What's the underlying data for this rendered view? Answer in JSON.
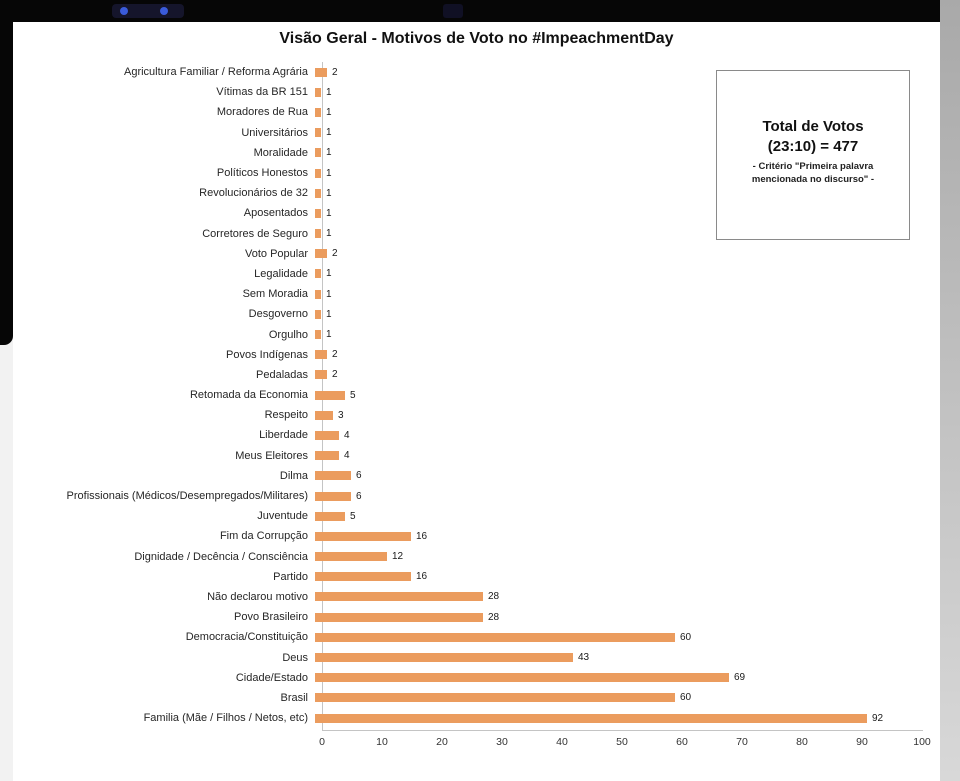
{
  "chart": {
    "title": "Visão Geral - Motivos de Voto no #ImpeachmentDay"
  },
  "annotation": {
    "line1": "Total de Votos",
    "line2": "(23:10) = 477",
    "line3": "- Critério \"Primeira palavra",
    "line4": "mencionada no discurso\" -"
  },
  "colors": {
    "bar": "#EB9C5E",
    "frame": "#060606"
  },
  "chart_data": {
    "type": "bar",
    "orientation": "horizontal",
    "title": "Visão Geral - Motivos de Voto no #ImpeachmentDay",
    "annotation": "Total de Votos (23:10) = 477 - Critério \"Primeira palavra mencionada no discurso\" -",
    "categories": [
      "Agricultura Familiar / Reforma Agrária",
      "Vítimas da BR 151",
      "Moradores de Rua",
      "Universitários",
      "Moralidade",
      "Políticos Honestos",
      "Revolucionários de 32",
      "Aposentados",
      "Corretores de Seguro",
      "Voto Popular",
      "Legalidade",
      "Sem Moradia",
      "Desgoverno",
      "Orgulho",
      "Povos Indígenas",
      "Pedaladas",
      "Retomada da Economia",
      "Respeito",
      "Liberdade",
      "Meus Eleitores",
      "Dilma",
      "Profissionais (Médicos/Desempregados/Militares)",
      "Juventude",
      "Fim da Corrupção",
      "Dignidade / Decência / Consciência",
      "Partido",
      "Não declarou motivo",
      "Povo Brasileiro",
      "Democracia/Constituição",
      "Deus",
      "Cidade/Estado",
      "Brasil",
      "Familia (Mãe / Filhos / Netos, etc)"
    ],
    "values": [
      2,
      1,
      1,
      1,
      1,
      1,
      1,
      1,
      1,
      2,
      1,
      1,
      1,
      1,
      2,
      2,
      5,
      3,
      4,
      4,
      6,
      6,
      5,
      16,
      12,
      16,
      28,
      28,
      60,
      43,
      69,
      60,
      92
    ],
    "xlabel": "",
    "ylabel": "",
    "xlim": [
      0,
      100
    ],
    "xticks": [
      0,
      10,
      20,
      30,
      40,
      50,
      60,
      70,
      80,
      90,
      100
    ],
    "grid": false,
    "legend": false,
    "bar_color": "#EB9C5E"
  }
}
